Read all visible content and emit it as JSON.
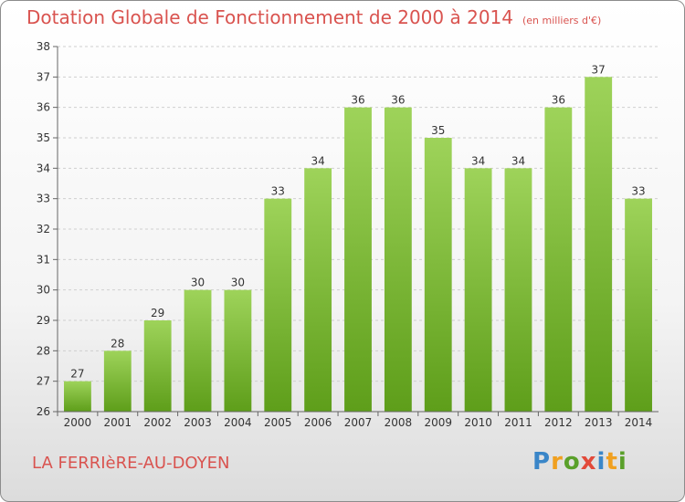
{
  "header": {
    "title": "Dotation Globale de Fonctionnement de 2000 à 2014",
    "unit": "(en milliers d'€)"
  },
  "footer": {
    "commune": "LA FERRIèRE-AU-DOYEN",
    "logo_letters": [
      "P",
      "r",
      "o",
      "x",
      "i",
      "t",
      "i"
    ]
  },
  "colors": {
    "bar_top": "#9ed35a",
    "bar_bottom": "#5e9e1a",
    "title": "#d9534f"
  },
  "chart_data": {
    "type": "bar",
    "title": "Dotation Globale de Fonctionnement de 2000 à 2014",
    "xlabel": "",
    "ylabel": "",
    "categories": [
      "2000",
      "2001",
      "2002",
      "2003",
      "2004",
      "2005",
      "2006",
      "2007",
      "2008",
      "2009",
      "2010",
      "2011",
      "2012",
      "2013",
      "2014"
    ],
    "values": [
      27,
      28,
      29,
      30,
      30,
      33,
      34,
      36,
      36,
      35,
      34,
      34,
      36,
      37,
      33
    ],
    "ylim": [
      26,
      38
    ],
    "yticks": [
      26,
      27,
      28,
      29,
      30,
      31,
      32,
      33,
      34,
      35,
      36,
      37,
      38
    ],
    "grid": true,
    "legend": "none"
  }
}
